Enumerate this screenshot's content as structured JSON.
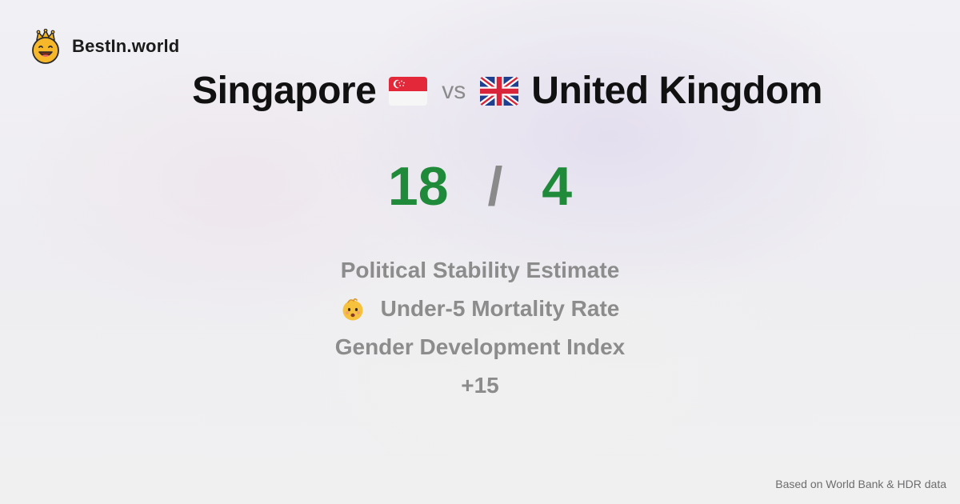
{
  "brand": {
    "name": "BestIn.world",
    "logo_icon": "crown-smiley-icon"
  },
  "comparison": {
    "country_a": "Singapore",
    "flag_a": "singapore-flag-icon",
    "vs_label": "vs",
    "country_b": "United Kingdom",
    "flag_b": "uk-flag-icon"
  },
  "score": {
    "a": "18",
    "separator": "/",
    "b": "4",
    "color": "#1f8a3a"
  },
  "metrics": [
    {
      "label": "Political Stability Estimate",
      "icon": null
    },
    {
      "label": "Under-5 Mortality Rate",
      "icon": "baby-face-icon"
    },
    {
      "label": "Gender Development Index",
      "icon": null
    }
  ],
  "more_count": "+15",
  "footer": "Based on World Bank & HDR data"
}
